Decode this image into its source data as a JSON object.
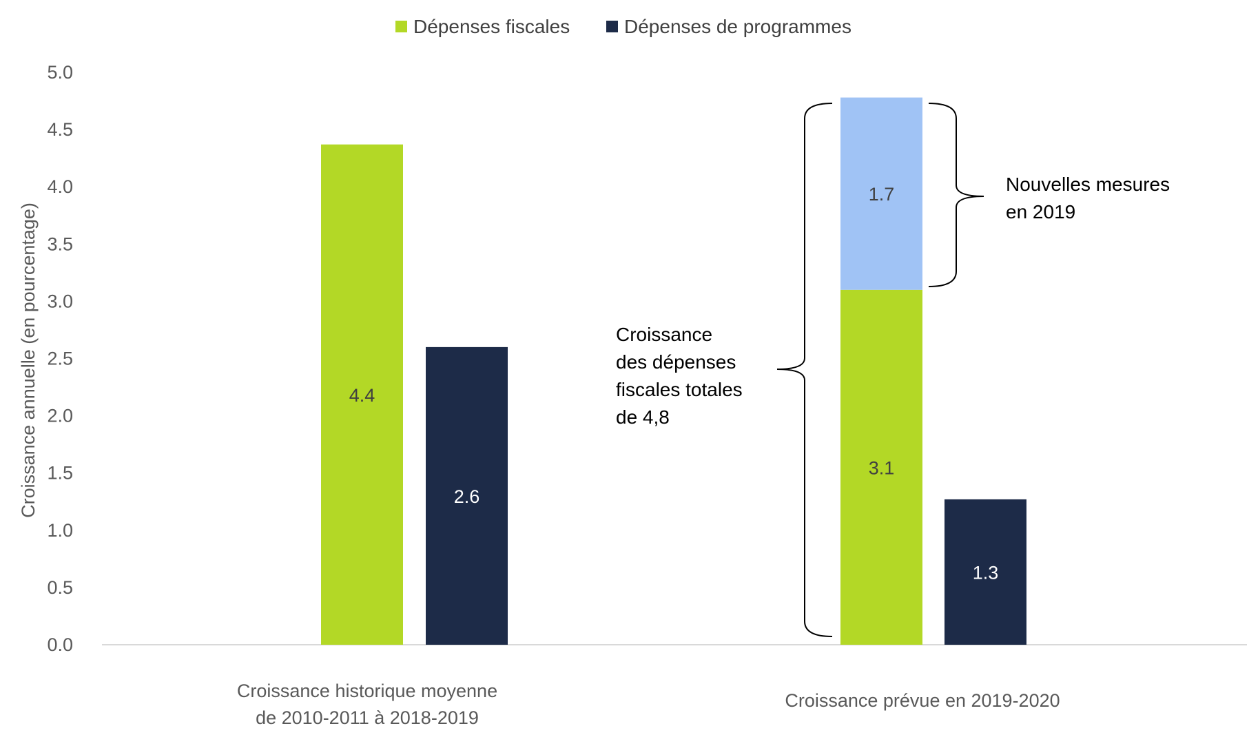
{
  "chart_data": {
    "type": "bar",
    "title": "",
    "ylabel": "Croissance annuelle (en pourcentage)",
    "xlabel": "",
    "ylim": [
      0,
      5.0
    ],
    "yticks": [
      "0.0",
      "0.5",
      "1.0",
      "1.5",
      "2.0",
      "2.5",
      "3.0",
      "3.5",
      "4.0",
      "4.5",
      "5.0"
    ],
    "grid": false,
    "legend_position": "top-center",
    "categories": [
      [
        "Croissance historique moyenne",
        "de 2010-2011 à 2018-2019"
      ],
      [
        "Croissance prévue en 2019-2020"
      ]
    ],
    "series": [
      {
        "name": "Dépenses fiscales",
        "color": "#b3d826",
        "stack": "fiscal",
        "values": [
          4.37,
          3.1
        ],
        "labels": [
          "4.4",
          "3.1"
        ],
        "in_legend": true
      },
      {
        "name": "Nouvelles mesures en 2019",
        "color": "#a0c3f5",
        "stack": "fiscal",
        "values": [
          null,
          1.68
        ],
        "labels": [
          "",
          "1.7"
        ],
        "in_legend": false
      },
      {
        "name": "Dépenses de programmes",
        "color": "#1d2b48",
        "stack": "programmes",
        "values": [
          2.6,
          1.27
        ],
        "labels": [
          "2.6",
          "1.3"
        ],
        "in_legend": true
      }
    ],
    "annotations": {
      "new_measures": [
        "Nouvelles mesures",
        "en 2019"
      ],
      "total_growth": [
        "Croissance",
        "des dépenses",
        "fiscales totales",
        "de 4,8"
      ]
    }
  }
}
